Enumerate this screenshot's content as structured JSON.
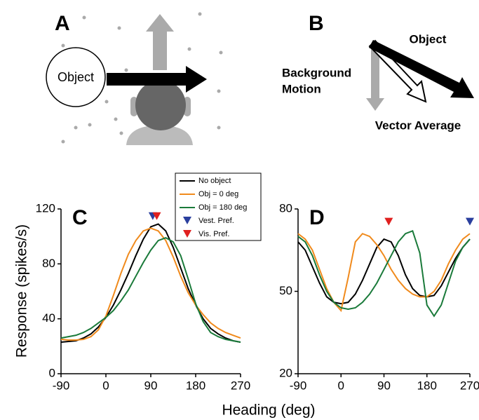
{
  "panel_a": {
    "label": "A",
    "object": "Object"
  },
  "panel_b": {
    "label": "B",
    "object": "Object",
    "background": [
      "Background",
      "Motion"
    ],
    "vector_average": "Vector Average"
  },
  "xlabel": "Heading (deg)",
  "chart_data": [
    {
      "type": "line",
      "label": "C",
      "ylabel": "Response (spikes/s)",
      "x": [
        -90,
        -75,
        -60,
        -45,
        -30,
        -15,
        0,
        15,
        30,
        45,
        60,
        75,
        90,
        105,
        120,
        135,
        150,
        165,
        180,
        195,
        210,
        225,
        240,
        255,
        270
      ],
      "xlim": [
        -90,
        270
      ],
      "xticks": [
        -90,
        0,
        90,
        180,
        270
      ],
      "ylim": [
        0,
        120
      ],
      "yticks": [
        0,
        40,
        80,
        120
      ],
      "series": [
        {
          "name": "No object",
          "color": "#000000",
          "values": [
            23,
            23.5,
            24,
            26,
            29,
            34,
            41,
            50,
            61,
            73,
            86,
            98,
            107,
            109,
            104,
            92,
            77,
            62,
            50,
            40,
            33,
            29,
            26,
            24,
            23
          ]
        },
        {
          "name": "Obj = 0 deg",
          "color": "#f08a1c",
          "values": [
            25,
            24.5,
            24.5,
            25,
            27,
            32,
            42,
            57,
            73,
            87,
            97,
            104,
            106,
            104,
            97,
            85,
            71,
            59,
            50,
            43,
            37,
            33,
            30,
            28,
            26
          ]
        },
        {
          "name": "Obj = 180 deg",
          "color": "#1a7a3a",
          "values": [
            26,
            27,
            28,
            30,
            33,
            37,
            41,
            46,
            53,
            61,
            71,
            81,
            90,
            97,
            99,
            96,
            86,
            69,
            51,
            38,
            30,
            27,
            25,
            24,
            23
          ]
        }
      ],
      "markers": [
        {
          "name": "Vest. Pref.",
          "color": "#2a3f9e",
          "x": 94,
          "y": 114
        },
        {
          "name": "Vis. Pref.",
          "color": "#e0201f",
          "x": 102,
          "y": 114
        }
      ]
    },
    {
      "type": "line",
      "label": "D",
      "x": [
        -90,
        -75,
        -60,
        -45,
        -30,
        -15,
        0,
        15,
        30,
        45,
        60,
        75,
        90,
        105,
        120,
        135,
        150,
        165,
        180,
        195,
        210,
        225,
        240,
        255,
        270
      ],
      "xlim": [
        -90,
        270
      ],
      "xticks": [
        -90,
        0,
        90,
        180,
        270
      ],
      "ylim": [
        20,
        80
      ],
      "yticks": [
        20,
        50,
        80
      ],
      "series": [
        {
          "color": "#000000",
          "values": [
            68,
            65,
            59,
            53,
            48,
            46,
            45.5,
            46,
            49,
            54,
            60,
            66,
            69,
            68,
            63,
            56,
            51,
            48.5,
            48,
            48.5,
            52,
            57,
            62,
            66,
            69
          ]
        },
        {
          "color": "#f08a1c",
          "values": [
            71,
            69,
            65,
            58,
            51,
            46,
            43,
            55,
            68,
            71,
            70,
            67,
            63,
            58,
            54,
            51,
            49,
            48,
            48,
            50,
            54,
            60,
            65,
            69,
            71
          ]
        },
        {
          "color": "#1a7a3a",
          "values": [
            70,
            68,
            63,
            56,
            50,
            46,
            44,
            43.5,
            44,
            46,
            49,
            53,
            58,
            63,
            68,
            71,
            72,
            64,
            45,
            41,
            45,
            53,
            61,
            66,
            69
          ]
        }
      ],
      "markers": [
        {
          "color": "#e0201f",
          "x": 100,
          "y": 75
        },
        {
          "color": "#2a3f9e",
          "x": 270,
          "y": 75
        }
      ]
    }
  ]
}
